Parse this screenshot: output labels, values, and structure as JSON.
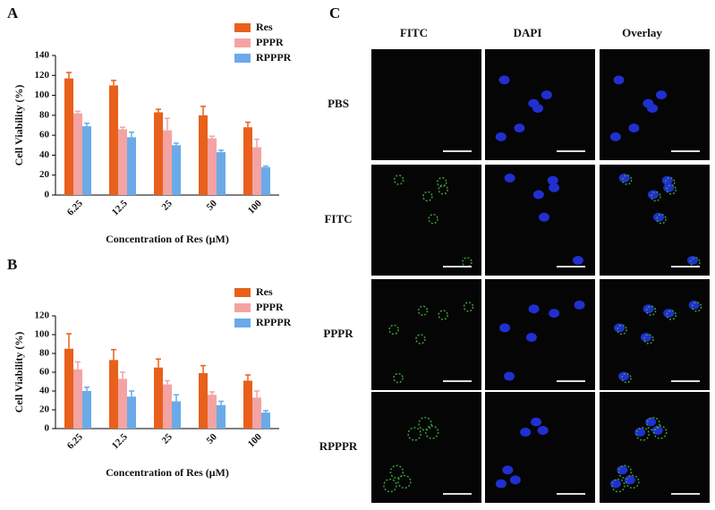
{
  "chart_data": [
    {
      "type": "bar",
      "panel_label": "A",
      "y_label": "Cell Viability  (%)",
      "x_label": "Concentration of Res  (μM)",
      "categories": [
        "6.25",
        "12.5",
        "25",
        "50",
        "100"
      ],
      "series": [
        {
          "name": "Res",
          "color": "#e8601c",
          "values": [
            117,
            110,
            83,
            80,
            68
          ],
          "errors": [
            6,
            5,
            3,
            9,
            5
          ]
        },
        {
          "name": "PPPR",
          "color": "#f4a3a3",
          "values": [
            82,
            66,
            65,
            57,
            48
          ],
          "errors": [
            2,
            2,
            12,
            2,
            8
          ]
        },
        {
          "name": "RPPPR",
          "color": "#6aaae8",
          "values": [
            69,
            58,
            50,
            43,
            28
          ],
          "errors": [
            3,
            5,
            2,
            2,
            1
          ]
        }
      ],
      "ylim": [
        0,
        140
      ],
      "yticks": [
        0,
        20,
        40,
        60,
        80,
        100,
        120,
        140
      ],
      "legend": "top-right"
    },
    {
      "type": "bar",
      "panel_label": "B",
      "y_label": "Cell Viability  (%)",
      "x_label": "Concentration of Res  (μM)",
      "categories": [
        "6.25",
        "12.5",
        "25",
        "50",
        "100"
      ],
      "series": [
        {
          "name": "Res",
          "color": "#e8601c",
          "values": [
            85,
            73,
            65,
            59,
            51
          ],
          "errors": [
            16,
            11,
            9,
            8,
            6
          ]
        },
        {
          "name": "PPPR",
          "color": "#f4a3a3",
          "values": [
            63,
            53,
            47,
            36,
            33
          ],
          "errors": [
            8,
            7,
            4,
            3,
            7
          ]
        },
        {
          "name": "RPPPR",
          "color": "#6aaae8",
          "values": [
            40,
            34,
            29,
            25,
            17
          ],
          "errors": [
            4,
            6,
            7,
            4,
            2
          ]
        }
      ],
      "ylim": [
        0,
        120
      ],
      "yticks": [
        0,
        20,
        40,
        60,
        80,
        100,
        120
      ],
      "legend": "top-right"
    }
  ],
  "microscopy": {
    "panel_label": "C",
    "columns": [
      "FITC",
      "DAPI",
      "Overlay"
    ],
    "rows": [
      "PBS",
      "FITC",
      "PPPR",
      "RPPPR"
    ]
  }
}
